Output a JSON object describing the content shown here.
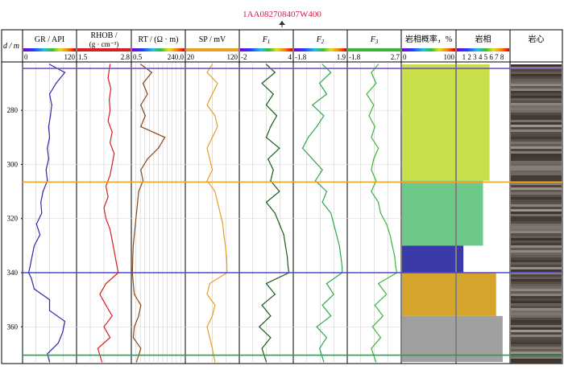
{
  "title": "1AA082708407W400",
  "well_symbol": "gas-well-symbol",
  "depth_axis": {
    "label": "d / m",
    "ticks": [
      280,
      300,
      320,
      340,
      360
    ],
    "range": [
      263,
      373
    ]
  },
  "columns": [
    {
      "id": "gr",
      "label": "GR / API",
      "scale_min": "0",
      "scale_max": "120",
      "scale_style": "rainbow"
    },
    {
      "id": "rhob",
      "label": "RHOB /",
      "label2": "(g · cm⁻³)",
      "scale_min": "1.5",
      "scale_max": "2.8",
      "scale_style": "red"
    },
    {
      "id": "rt",
      "label": "RT / (Ω · m)",
      "scale_min": "0.5",
      "scale_max": "240.0",
      "scale_style": "rainbow"
    },
    {
      "id": "sp",
      "label": "SP / mV",
      "scale_min": "20",
      "scale_max": "120",
      "scale_style": "orange"
    },
    {
      "id": "f1",
      "label": "F",
      "sub": "1",
      "scale_min": "-2",
      "scale_max": "4",
      "scale_style": "rainbow"
    },
    {
      "id": "f2",
      "label": "F",
      "sub": "2",
      "scale_min": "-1.8",
      "scale_max": "1.9",
      "scale_style": "rainbow"
    },
    {
      "id": "f3",
      "label": "F",
      "sub": "3",
      "scale_min": "-1.8",
      "scale_max": "2.7",
      "scale_style": "green"
    },
    {
      "id": "prob",
      "label": "岩相概率，%",
      "scale_min": "0",
      "scale_max": "100",
      "scale_style": "rainbow"
    },
    {
      "id": "facies",
      "label": "岩相",
      "scale_ticks": "1 2 3 4 5 6 7 8",
      "scale_style": "rainbow"
    },
    {
      "id": "core",
      "label": "岩心"
    }
  ],
  "markers": [
    {
      "depth": 264.5,
      "color": "#7b4fc9"
    },
    {
      "depth": 306.5,
      "color": "#f5a623"
    },
    {
      "depth": 340.0,
      "color": "#4a4ad0"
    },
    {
      "depth": 370.5,
      "color": "#1aa84a"
    }
  ],
  "chart_data": {
    "type": "line",
    "x_label": "d / m",
    "depth_range": [
      263,
      373
    ],
    "series": [
      {
        "name": "GR / API",
        "color": "#2b2ba8",
        "points": [
          [
            263,
            60
          ],
          [
            266,
            95
          ],
          [
            270,
            75
          ],
          [
            274,
            60
          ],
          [
            278,
            65
          ],
          [
            282,
            62
          ],
          [
            286,
            58
          ],
          [
            290,
            60
          ],
          [
            294,
            55
          ],
          [
            298,
            58
          ],
          [
            302,
            52
          ],
          [
            306,
            55
          ],
          [
            310,
            45
          ],
          [
            314,
            40
          ],
          [
            318,
            42
          ],
          [
            322,
            30
          ],
          [
            326,
            38
          ],
          [
            330,
            25
          ],
          [
            334,
            20
          ],
          [
            338,
            15
          ],
          [
            340,
            12
          ],
          [
            342,
            18
          ],
          [
            346,
            25
          ],
          [
            350,
            60
          ],
          [
            354,
            60
          ],
          [
            358,
            95
          ],
          [
            362,
            90
          ],
          [
            366,
            80
          ],
          [
            370,
            55
          ],
          [
            373,
            60
          ]
        ]
      },
      {
        "name": "RHOB /",
        "color": "#d42020",
        "points": [
          [
            263,
            2.3
          ],
          [
            268,
            2.25
          ],
          [
            272,
            2.32
          ],
          [
            276,
            2.28
          ],
          [
            280,
            2.3
          ],
          [
            284,
            2.25
          ],
          [
            288,
            2.35
          ],
          [
            292,
            2.3
          ],
          [
            296,
            2.4
          ],
          [
            300,
            2.35
          ],
          [
            304,
            2.3
          ],
          [
            308,
            2.2
          ],
          [
            312,
            2.25
          ],
          [
            316,
            2.15
          ],
          [
            320,
            2.2
          ],
          [
            324,
            2.3
          ],
          [
            328,
            2.35
          ],
          [
            332,
            2.4
          ],
          [
            336,
            2.45
          ],
          [
            340,
            2.5
          ],
          [
            344,
            2.2
          ],
          [
            348,
            2.05
          ],
          [
            352,
            2.2
          ],
          [
            356,
            2.35
          ],
          [
            360,
            2.15
          ],
          [
            364,
            2.3
          ],
          [
            368,
            2.0
          ],
          [
            373,
            2.1
          ]
        ]
      },
      {
        "name": "RT / (Ω · m)",
        "color": "#8b4513",
        "points": [
          [
            263,
            40
          ],
          [
            266,
            90
          ],
          [
            270,
            50
          ],
          [
            274,
            70
          ],
          [
            278,
            40
          ],
          [
            282,
            60
          ],
          [
            286,
            40
          ],
          [
            290,
            150
          ],
          [
            294,
            120
          ],
          [
            298,
            70
          ],
          [
            302,
            40
          ],
          [
            306,
            50
          ],
          [
            310,
            30
          ],
          [
            314,
            25
          ],
          [
            318,
            20
          ],
          [
            322,
            15
          ],
          [
            326,
            10
          ],
          [
            330,
            5
          ],
          [
            334,
            3
          ],
          [
            338,
            2
          ],
          [
            340,
            1
          ],
          [
            344,
            5
          ],
          [
            348,
            10
          ],
          [
            352,
            40
          ],
          [
            356,
            30
          ],
          [
            360,
            10
          ],
          [
            364,
            5
          ],
          [
            368,
            40
          ],
          [
            373,
            20
          ]
        ]
      },
      {
        "name": "SP / mV",
        "color": "#e8a020",
        "points": [
          [
            263,
            70
          ],
          [
            266,
            60
          ],
          [
            270,
            80
          ],
          [
            274,
            70
          ],
          [
            278,
            60
          ],
          [
            282,
            75
          ],
          [
            286,
            80
          ],
          [
            290,
            70
          ],
          [
            294,
            60
          ],
          [
            298,
            65
          ],
          [
            302,
            70
          ],
          [
            306,
            60
          ],
          [
            310,
            75
          ],
          [
            314,
            80
          ],
          [
            318,
            85
          ],
          [
            322,
            90
          ],
          [
            326,
            92
          ],
          [
            330,
            95
          ],
          [
            334,
            97
          ],
          [
            338,
            98
          ],
          [
            340,
            98
          ],
          [
            344,
            65
          ],
          [
            348,
            60
          ],
          [
            352,
            75
          ],
          [
            356,
            70
          ],
          [
            360,
            60
          ],
          [
            364,
            65
          ],
          [
            368,
            70
          ],
          [
            373,
            75
          ]
        ]
      },
      {
        "name": "F1",
        "color": "#1a5a1a",
        "points": [
          [
            263,
            1.0
          ],
          [
            266,
            2.0
          ],
          [
            270,
            0.5
          ],
          [
            274,
            1.8
          ],
          [
            278,
            1.0
          ],
          [
            282,
            2.2
          ],
          [
            286,
            1.5
          ],
          [
            290,
            1.0
          ],
          [
            294,
            2.5
          ],
          [
            298,
            1.2
          ],
          [
            302,
            1.8
          ],
          [
            306,
            1.5
          ],
          [
            310,
            2.5
          ],
          [
            314,
            1.0
          ],
          [
            318,
            2.0
          ],
          [
            322,
            2.5
          ],
          [
            326,
            3.0
          ],
          [
            330,
            3.2
          ],
          [
            334,
            3.4
          ],
          [
            338,
            3.5
          ],
          [
            340,
            3.6
          ],
          [
            344,
            1.0
          ],
          [
            348,
            2.0
          ],
          [
            352,
            0.5
          ],
          [
            356,
            1.5
          ],
          [
            360,
            0.2
          ],
          [
            364,
            1.5
          ],
          [
            368,
            0.5
          ],
          [
            373,
            1.0
          ]
        ]
      },
      {
        "name": "F2",
        "color": "#2ea84a",
        "points": [
          [
            263,
            0.2
          ],
          [
            266,
            0.8
          ],
          [
            270,
            0.0
          ],
          [
            274,
            0.5
          ],
          [
            278,
            -0.5
          ],
          [
            282,
            0.3
          ],
          [
            286,
            -0.2
          ],
          [
            290,
            -0.8
          ],
          [
            294,
            -1.2
          ],
          [
            298,
            -0.5
          ],
          [
            302,
            0.2
          ],
          [
            306,
            -0.3
          ],
          [
            310,
            0.5
          ],
          [
            314,
            0.2
          ],
          [
            318,
            0.8
          ],
          [
            322,
            1.0
          ],
          [
            326,
            1.2
          ],
          [
            330,
            1.4
          ],
          [
            334,
            1.5
          ],
          [
            338,
            1.6
          ],
          [
            340,
            1.6
          ],
          [
            344,
            0.5
          ],
          [
            348,
            1.0
          ],
          [
            352,
            0.2
          ],
          [
            356,
            0.8
          ],
          [
            360,
            -0.2
          ],
          [
            364,
            0.5
          ],
          [
            368,
            0.0
          ],
          [
            373,
            0.3
          ]
        ]
      },
      {
        "name": "F3",
        "color": "#3cb43c",
        "points": [
          [
            263,
            0.8
          ],
          [
            266,
            0.2
          ],
          [
            270,
            0.6
          ],
          [
            274,
            -0.2
          ],
          [
            278,
            0.4
          ],
          [
            282,
            0.0
          ],
          [
            286,
            0.5
          ],
          [
            290,
            0.2
          ],
          [
            294,
            0.8
          ],
          [
            298,
            0.4
          ],
          [
            302,
            0.2
          ],
          [
            306,
            0.6
          ],
          [
            310,
            0.2
          ],
          [
            314,
            0.8
          ],
          [
            318,
            1.0
          ],
          [
            322,
            1.5
          ],
          [
            326,
            1.8
          ],
          [
            330,
            2.0
          ],
          [
            334,
            2.2
          ],
          [
            338,
            2.3
          ],
          [
            340,
            2.4
          ],
          [
            344,
            0.8
          ],
          [
            348,
            1.5
          ],
          [
            352,
            0.5
          ],
          [
            356,
            1.2
          ],
          [
            360,
            0.3
          ],
          [
            364,
            1.0
          ],
          [
            368,
            0.2
          ],
          [
            373,
            0.6
          ]
        ]
      }
    ],
    "facies_intervals": [
      {
        "top": 263,
        "bottom": 306,
        "facies": 5,
        "color": "#c8e04a"
      },
      {
        "top": 306,
        "bottom": 330,
        "facies": 4,
        "color": "#6cc98a"
      },
      {
        "top": 330,
        "bottom": 340,
        "facies": 1,
        "color": "#3a3aa8"
      },
      {
        "top": 340,
        "bottom": 356,
        "facies": 6,
        "color": "#d4a52a"
      },
      {
        "top": 356,
        "bottom": 373,
        "facies": 7,
        "color": "#a0a0a0"
      }
    ]
  }
}
